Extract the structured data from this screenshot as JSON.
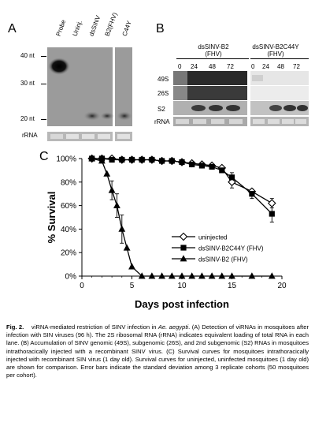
{
  "panel_a": {
    "letter": "A",
    "lanes": [
      "Probe",
      "Uninj.",
      "dsSINV",
      "B2(FHV)",
      "C44Y"
    ],
    "markers": [
      "40 nt",
      "30 nt",
      "20 nt"
    ],
    "rrna_label": "rRNA"
  },
  "panel_b": {
    "letter": "B",
    "group1_title_line1": "dsSINV-B2",
    "group1_title_line2": "(FHV)",
    "group2_title_line1": "dsSINV-B2C44Y",
    "group2_title_line2": "(FHV)",
    "timepoints": [
      "0",
      "24",
      "48",
      "72",
      "0",
      "24",
      "48",
      "72"
    ],
    "row_labels": [
      "49S",
      "26S",
      "S2",
      "rRNA"
    ]
  },
  "panel_c": {
    "letter": "C"
  },
  "chart_data": {
    "type": "line",
    "xlabel": "Days post infection",
    "ylabel": "% Survival",
    "xlim": [
      0,
      20
    ],
    "ylim": [
      0,
      100
    ],
    "xticks": [
      "0",
      "5",
      "10",
      "15",
      "20"
    ],
    "yticks": [
      "0%",
      "20%",
      "40%",
      "60%",
      "80%",
      "100%"
    ],
    "legend_position": "center-right",
    "series": [
      {
        "name": "uninjected",
        "marker": "open-diamond",
        "x": [
          1,
          2,
          3,
          4,
          5,
          6,
          7,
          8,
          9,
          10,
          11,
          12,
          13,
          14,
          15,
          17,
          19
        ],
        "y": [
          100,
          100,
          100,
          99,
          99,
          99,
          99,
          98,
          98,
          97,
          96,
          95,
          94,
          92,
          80,
          72,
          62
        ]
      },
      {
        "name": "dsSINV-B2C44Y (FHV)",
        "marker": "filled-square",
        "x": [
          1,
          2,
          3,
          4,
          5,
          6,
          7,
          8,
          9,
          10,
          11,
          12,
          13,
          14,
          15,
          17,
          19
        ],
        "y": [
          100,
          100,
          99,
          99,
          99,
          99,
          99,
          98,
          98,
          97,
          95,
          94,
          93,
          90,
          84,
          70,
          53
        ]
      },
      {
        "name": "dsSINV-B2 (FHV)",
        "marker": "filled-triangle",
        "x": [
          1,
          2,
          2.5,
          3,
          3.5,
          4,
          4.5,
          5,
          6,
          7,
          8,
          9,
          10,
          11,
          12,
          13,
          14,
          15,
          17,
          19
        ],
        "y": [
          100,
          98,
          87,
          73,
          60,
          40,
          24,
          8,
          0,
          0,
          0,
          0,
          0,
          0,
          0,
          0,
          0,
          0,
          0,
          0
        ]
      }
    ]
  },
  "caption": {
    "fig": "Fig. 2.",
    "title": "viRNA-mediated restriction of SINV infection in ",
    "title_species": "Ae. aegypti",
    "title_end": ".",
    "body": "(A) Detection of viRNAs in mosquitoes after infection with SIN viruses (96 h). The 2S ribosomal RNA (rRNA) indicates equivalent loading of total RNA in each lane. (B) Accumulation of SINV genomic (49S), subgenomic (26S), and 2nd subgenomic (S2) RNAs in mosquitoes intrathoracically injected with a recombinant SINV virus. (C) Survival curves for mosquitoes intrathoracically injected with recombinant SIN virus (1 day old). Survival curves for uninjected, uninfected mosquitoes (1 day old) are shown for comparison. Error bars indicate the standard deviation among 3 replicate cohorts (50 mosquitoes per cohort)."
  }
}
